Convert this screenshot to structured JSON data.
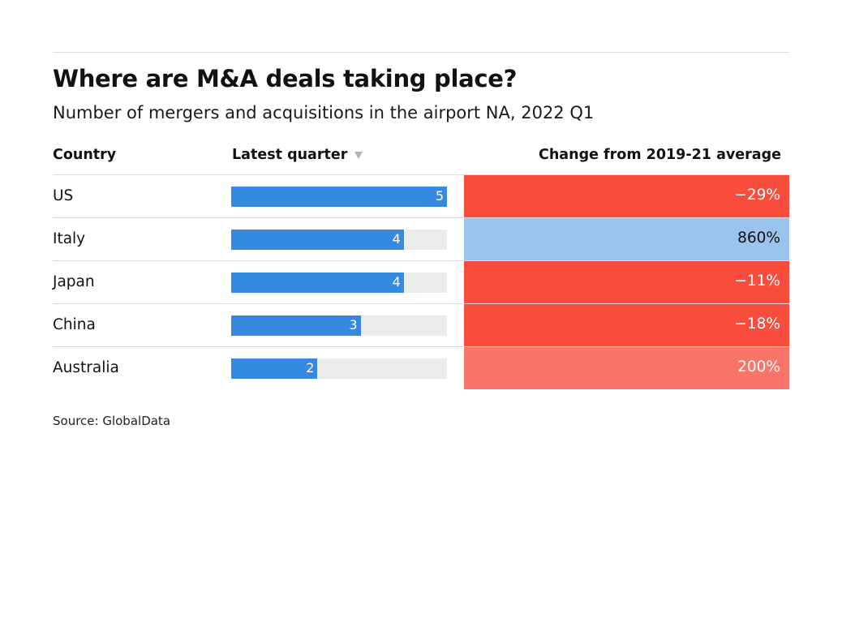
{
  "title": "Where are M&A deals taking place?",
  "subtitle": "Number of mergers and acquisitions in the airport NA, 2022 Q1",
  "source": "Source: GlobalData",
  "columns": {
    "country": "Country",
    "latest": "Latest quarter",
    "change": "Change from 2019-21 average"
  },
  "sort_indicator": "sort-descending-icon",
  "colors": {
    "bar": "#3689e0",
    "track": "#ebebeb",
    "negative_strong": "#f84c3d",
    "positive_medium": "#f9756a",
    "positive_light_blue": "#9ac4ee"
  },
  "chart_data": {
    "type": "table",
    "title": "Where are M&A deals taking place?",
    "subtitle": "Number of mergers and acquisitions in the airport NA, 2022 Q1",
    "columns": [
      "Country",
      "Latest quarter",
      "Change from 2019-21 average"
    ],
    "bar_max": 5,
    "rows": [
      {
        "country": "US",
        "latest": 5,
        "change": "−29%",
        "change_value": -29,
        "cell_color": "#f84c3d",
        "text_color": "#ffffff"
      },
      {
        "country": "Italy",
        "latest": 4,
        "change": "860%",
        "change_value": 860,
        "cell_color": "#9ac4ee",
        "text_color": "#121212"
      },
      {
        "country": "Japan",
        "latest": 4,
        "change": "−11%",
        "change_value": -11,
        "cell_color": "#f84c3d",
        "text_color": "#ffffff"
      },
      {
        "country": "China",
        "latest": 3,
        "change": "−18%",
        "change_value": -18,
        "cell_color": "#f84c3d",
        "text_color": "#ffffff"
      },
      {
        "country": "Australia",
        "latest": 2,
        "change": "200%",
        "change_value": 200,
        "cell_color": "#f9756a",
        "text_color": "#ffffff"
      }
    ],
    "source": "Source: GlobalData"
  }
}
